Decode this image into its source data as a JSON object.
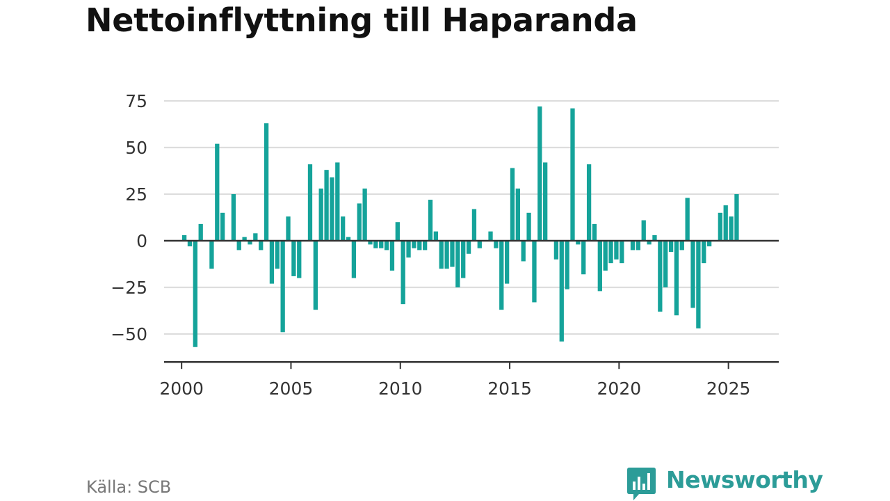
{
  "title": "Nettoinflyttning till Haparanda",
  "source": "Källa: SCB",
  "brand": {
    "name": "Newsworthy",
    "icon": "newsworthy-chart-bubble-icon",
    "color": "#2c9c98"
  },
  "colors": {
    "bar": "#15a39a",
    "grid": "#dddddd",
    "zero_line": "#333333",
    "axis": "#333333"
  },
  "chart_data": {
    "type": "bar",
    "title": "Nettoinflyttning till Haparanda",
    "xlabel": "",
    "ylabel": "",
    "xlim": [
      1999.2,
      2027.3
    ],
    "ylim": [
      -65,
      75
    ],
    "xticks": [
      "2000",
      "2005",
      "2010",
      "2015",
      "2020",
      "2025"
    ],
    "yticks": [
      {
        "value": 75,
        "label": "75"
      },
      {
        "value": 50,
        "label": "50"
      },
      {
        "value": 25,
        "label": "25"
      },
      {
        "value": 0,
        "label": "0"
      },
      {
        "value": -25,
        "label": "−25"
      },
      {
        "value": -50,
        "label": "−50"
      }
    ],
    "grid": true,
    "legend": "none",
    "series": [
      {
        "frequency": "quarterly",
        "x": [
          2000.0,
          2000.25,
          2000.5,
          2000.75,
          2001.0,
          2001.25,
          2001.5,
          2001.75,
          2002.0,
          2002.25,
          2002.5,
          2002.75,
          2003.0,
          2003.25,
          2003.5,
          2003.75,
          2004.0,
          2004.25,
          2004.5,
          2004.75,
          2005.0,
          2005.25,
          2005.5,
          2005.75,
          2006.0,
          2006.25,
          2006.5,
          2006.75,
          2007.0,
          2007.25,
          2007.5,
          2007.75,
          2008.0,
          2008.25,
          2008.5,
          2008.75,
          2009.0,
          2009.25,
          2009.5,
          2009.75,
          2010.0,
          2010.25,
          2010.5,
          2010.75,
          2011.0,
          2011.25,
          2011.5,
          2011.75,
          2012.0,
          2012.25,
          2012.5,
          2012.75,
          2013.0,
          2013.25,
          2013.5,
          2013.75,
          2014.0,
          2014.25,
          2014.5,
          2014.75,
          2015.0,
          2015.25,
          2015.5,
          2015.75,
          2016.0,
          2016.25,
          2016.5,
          2016.75,
          2017.0,
          2017.25,
          2017.5,
          2017.75,
          2018.0,
          2018.25,
          2018.5,
          2018.75,
          2019.0,
          2019.25,
          2019.5,
          2019.75,
          2020.0,
          2020.25,
          2020.5,
          2020.75,
          2021.0,
          2021.25,
          2021.5,
          2021.75,
          2022.0,
          2022.25,
          2022.5,
          2022.75,
          2023.0,
          2023.25,
          2023.5,
          2023.75,
          2024.0,
          2024.25,
          2024.5,
          2024.75,
          2025.0,
          2025.25
        ],
        "values": [
          3,
          -3,
          -57,
          9,
          0,
          -15,
          52,
          15,
          0,
          25,
          -5,
          2,
          -2,
          4,
          -5,
          63,
          -23,
          -15,
          -49,
          13,
          -19,
          -20,
          0,
          41,
          -37,
          28,
          38,
          34,
          42,
          13,
          2,
          -20,
          20,
          28,
          -2,
          -4,
          -4,
          -5,
          -16,
          10,
          -34,
          -9,
          -4,
          -5,
          -5,
          22,
          5,
          -15,
          -15,
          -14,
          -25,
          -20,
          -7,
          17,
          -4,
          0,
          5,
          -4,
          -37,
          -23,
          39,
          28,
          -11,
          15,
          -33,
          72,
          42,
          0,
          -10,
          -54,
          -26,
          71,
          -2,
          -18,
          41,
          9,
          -27,
          -16,
          -12,
          -10,
          -12,
          0,
          -5,
          -5,
          11,
          -2,
          3,
          -38,
          -25,
          -6,
          -40,
          -5,
          23,
          -36,
          -47,
          -12,
          -3,
          0,
          15,
          19,
          13,
          25
        ]
      }
    ]
  }
}
